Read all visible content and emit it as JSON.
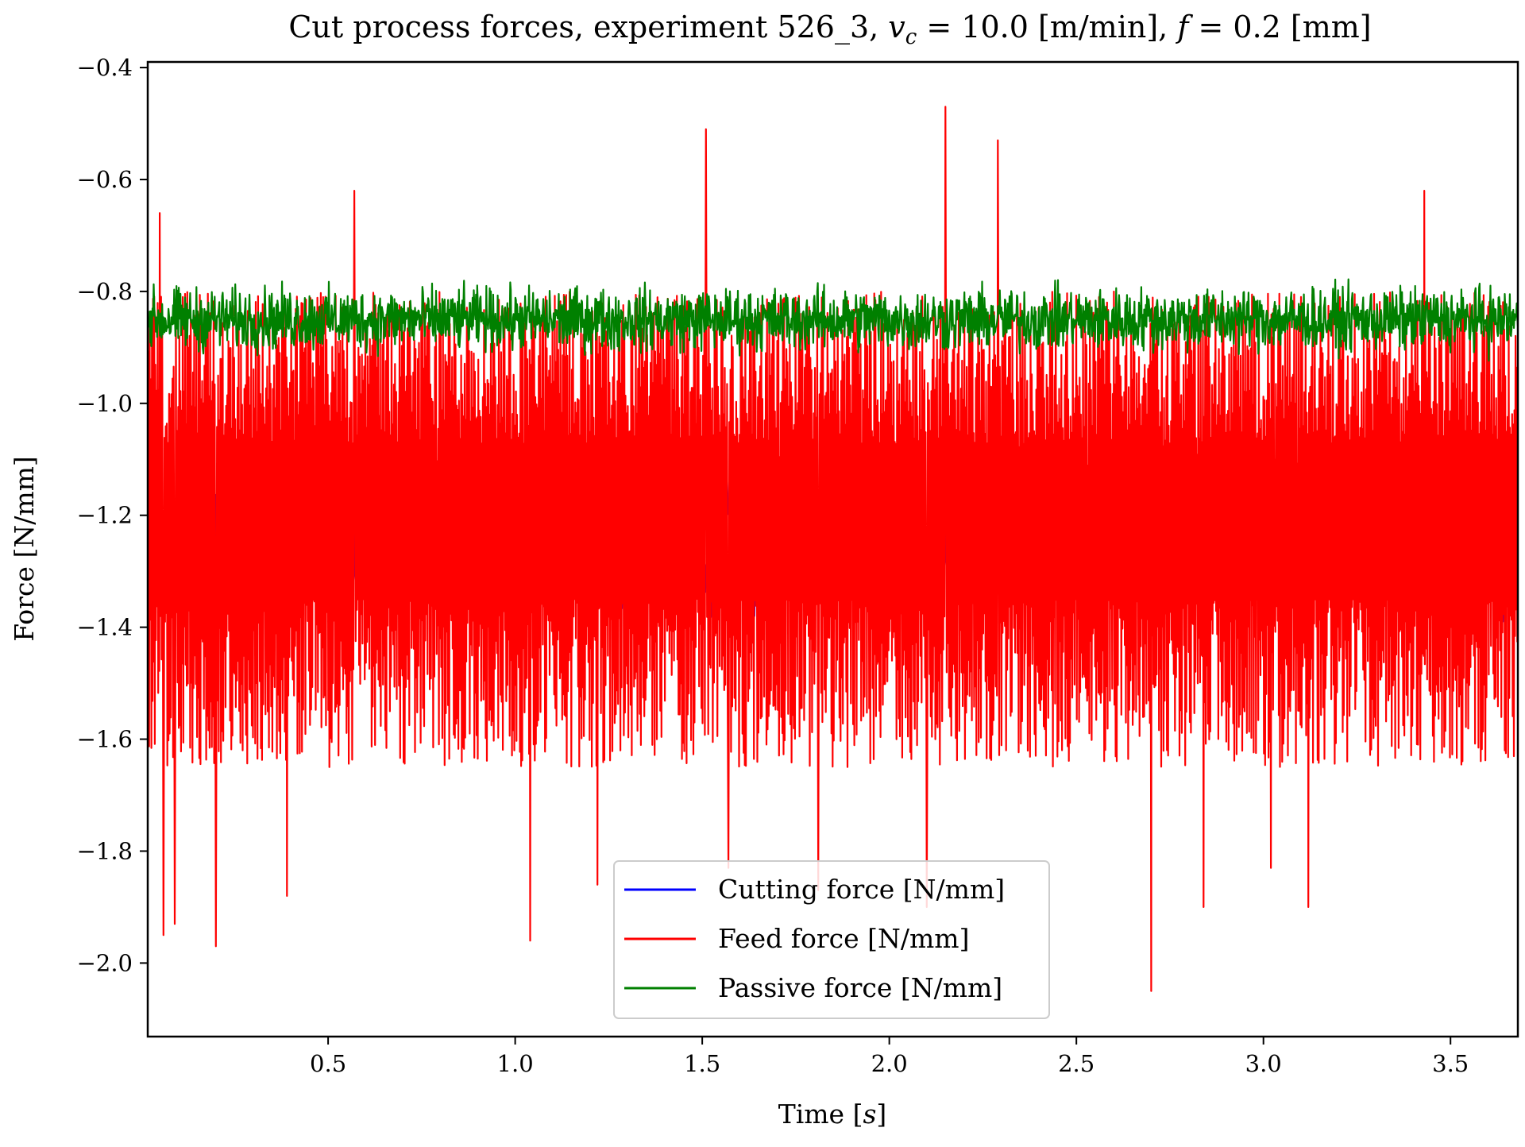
{
  "chart_data": {
    "type": "line",
    "title": "Cut process forces, experiment 526_3, v_c = 10.0 [m/min], f = 0.2 [mm]",
    "title_parts": {
      "prefix": "Cut process forces, experiment 526",
      "sub_underscore": "3",
      "mid": ", ",
      "vc_symbol": "v",
      "vc_subscript": "c",
      "vc_value": " = 10.0 [m/min], ",
      "f_symbol": "f",
      "f_value": " = 0.2 [mm]"
    },
    "xlabel": "Time [s]",
    "xlabel_parts": {
      "text": "Time [",
      "unit": "s",
      "close": "]"
    },
    "ylabel": "Force [N/mm]",
    "xlim": [
      0.02,
      3.68
    ],
    "ylim": [
      -2.13,
      -0.39
    ],
    "x_ticks": [
      0.5,
      1.0,
      1.5,
      2.0,
      2.5,
      3.0,
      3.5
    ],
    "x_tick_labels": [
      "0.5",
      "1.0",
      "1.5",
      "2.0",
      "2.5",
      "3.0",
      "3.5"
    ],
    "y_ticks": [
      -0.4,
      -0.6,
      -0.8,
      -1.0,
      -1.2,
      -1.4,
      -1.6,
      -1.8,
      -2.0
    ],
    "y_tick_labels": [
      "−0.4",
      "−0.6",
      "−0.8",
      "−1.0",
      "−1.2",
      "−1.4",
      "−1.6",
      "−1.8",
      "−2.0"
    ],
    "grid": false,
    "legend_position": "lower-center",
    "series": [
      {
        "name": "Cutting force [N/mm]",
        "color": "#0000ff",
        "mean": -1.22,
        "min": -1.4,
        "max": -1.13,
        "x_start": 0.02,
        "x_end": 3.68,
        "dense_oscillation": true,
        "notable_peaks": []
      },
      {
        "name": "Feed force [N/mm]",
        "color": "#ff0000",
        "mean": -1.22,
        "typical_upper": -0.8,
        "typical_lower": -1.65,
        "min": -2.05,
        "max": -0.47,
        "x_start": 0.02,
        "x_end": 3.68,
        "dense_oscillation": true,
        "notable_peaks": [
          {
            "x": 0.05,
            "y": -0.66
          },
          {
            "x": 0.06,
            "y": -1.95
          },
          {
            "x": 0.09,
            "y": -1.93
          },
          {
            "x": 0.2,
            "y": -1.97
          },
          {
            "x": 0.39,
            "y": -1.88
          },
          {
            "x": 0.57,
            "y": -0.62
          },
          {
            "x": 1.04,
            "y": -1.96
          },
          {
            "x": 1.22,
            "y": -1.86
          },
          {
            "x": 1.51,
            "y": -0.51
          },
          {
            "x": 1.57,
            "y": -1.83
          },
          {
            "x": 1.81,
            "y": -1.87
          },
          {
            "x": 2.1,
            "y": -1.9
          },
          {
            "x": 2.15,
            "y": -0.47
          },
          {
            "x": 2.29,
            "y": -0.53
          },
          {
            "x": 2.7,
            "y": -2.05
          },
          {
            "x": 2.84,
            "y": -1.9
          },
          {
            "x": 3.02,
            "y": -1.83
          },
          {
            "x": 3.12,
            "y": -1.9
          },
          {
            "x": 3.43,
            "y": -0.62
          }
        ]
      },
      {
        "name": "Passive force [N/mm]",
        "color": "#008000",
        "mean": -0.855,
        "min": -0.93,
        "max": -0.77,
        "x_start": 0.02,
        "x_end": 3.68,
        "dense_oscillation": true,
        "notable_peaks": []
      }
    ]
  }
}
